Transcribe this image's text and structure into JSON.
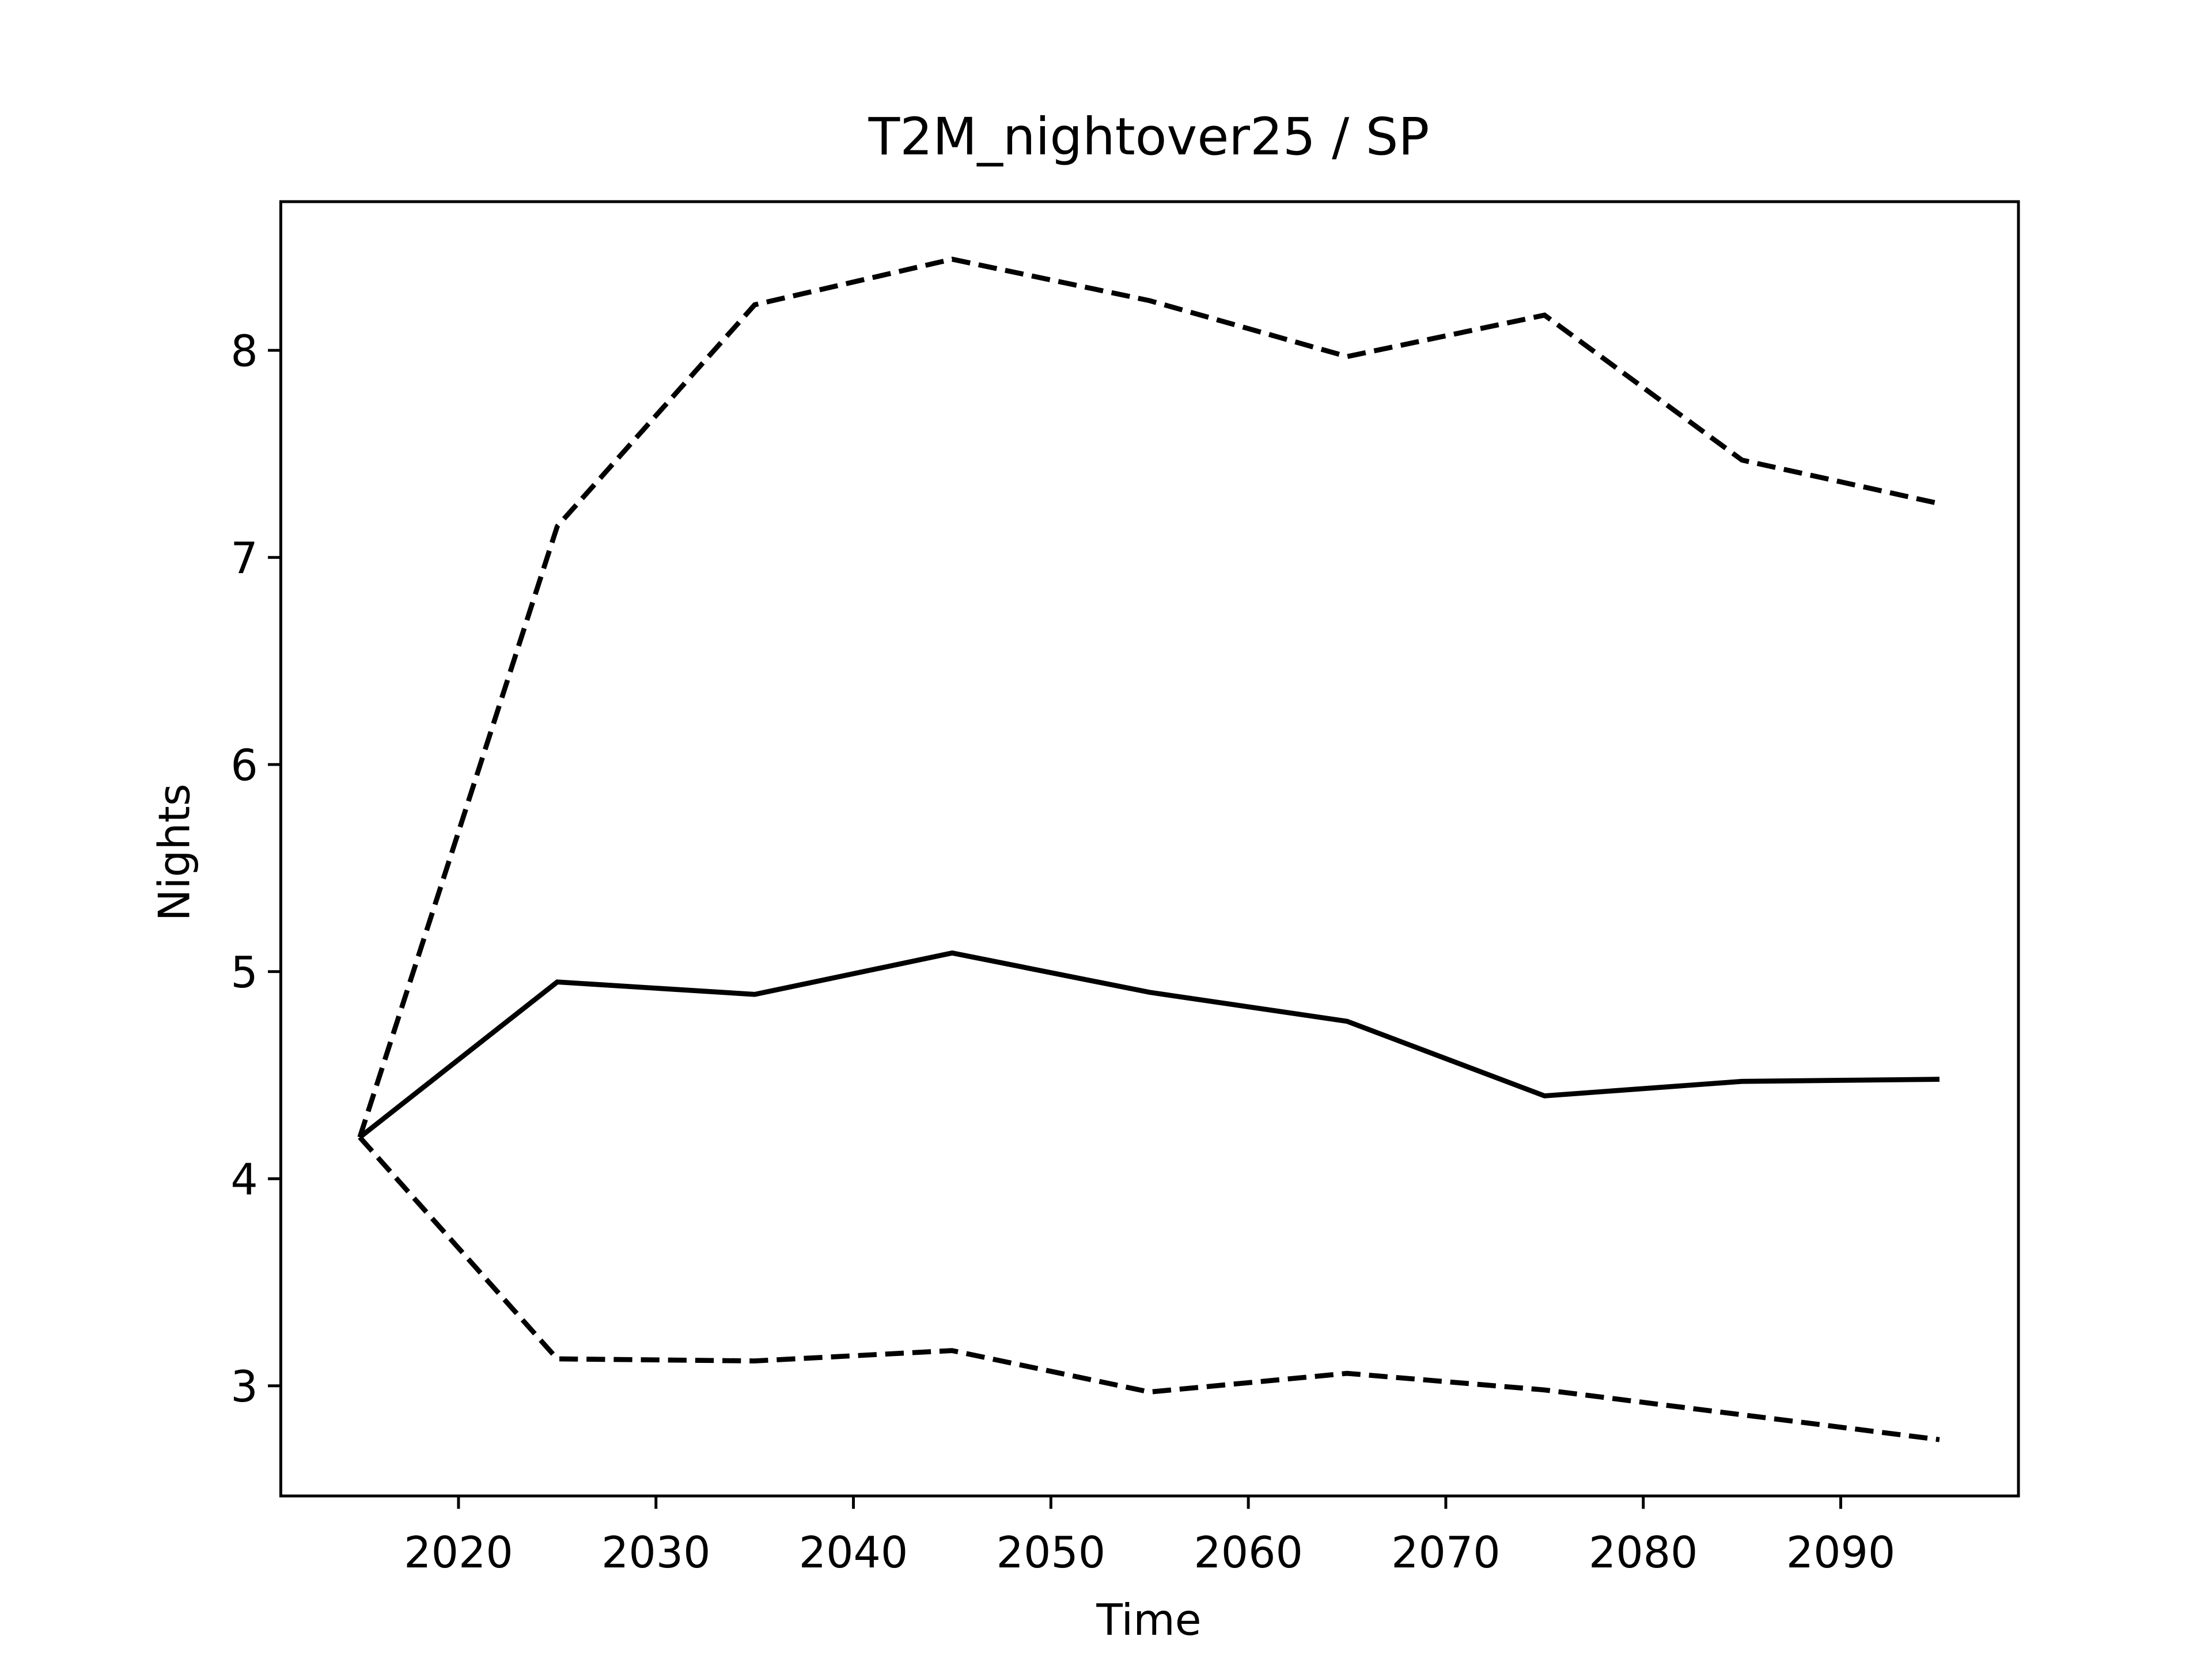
{
  "chart_data": {
    "type": "line",
    "title": "T2M_nightover25 / SP",
    "x_label": "Time",
    "y_label": "Nights",
    "x": [
      2015,
      2025,
      2035,
      2045,
      2055,
      2065,
      2075,
      2085,
      2095
    ],
    "series": [
      {
        "color": "#000000",
        "linestyle": "dashed",
        "values": [
          4.2,
          7.15,
          8.22,
          8.44,
          8.24,
          7.97,
          8.17,
          7.47,
          7.26
        ]
      },
      {
        "color": "#000000",
        "linestyle": "solid",
        "values": [
          4.2,
          4.95,
          4.89,
          5.09,
          4.9,
          4.76,
          4.4,
          4.47,
          4.48
        ]
      },
      {
        "color": "#000000",
        "linestyle": "dashed",
        "values": [
          4.2,
          3.13,
          3.12,
          3.17,
          2.97,
          3.06,
          2.98,
          2.86,
          2.74
        ]
      }
    ],
    "xlim": [
      2011,
      2099
    ],
    "xticks": [
      2020,
      2030,
      2040,
      2050,
      2060,
      2070,
      2080,
      2090
    ],
    "ylim": [
      2.468,
      8.718
    ],
    "yticks": [
      3,
      4,
      5,
      6,
      7,
      8
    ],
    "grid": false
  }
}
